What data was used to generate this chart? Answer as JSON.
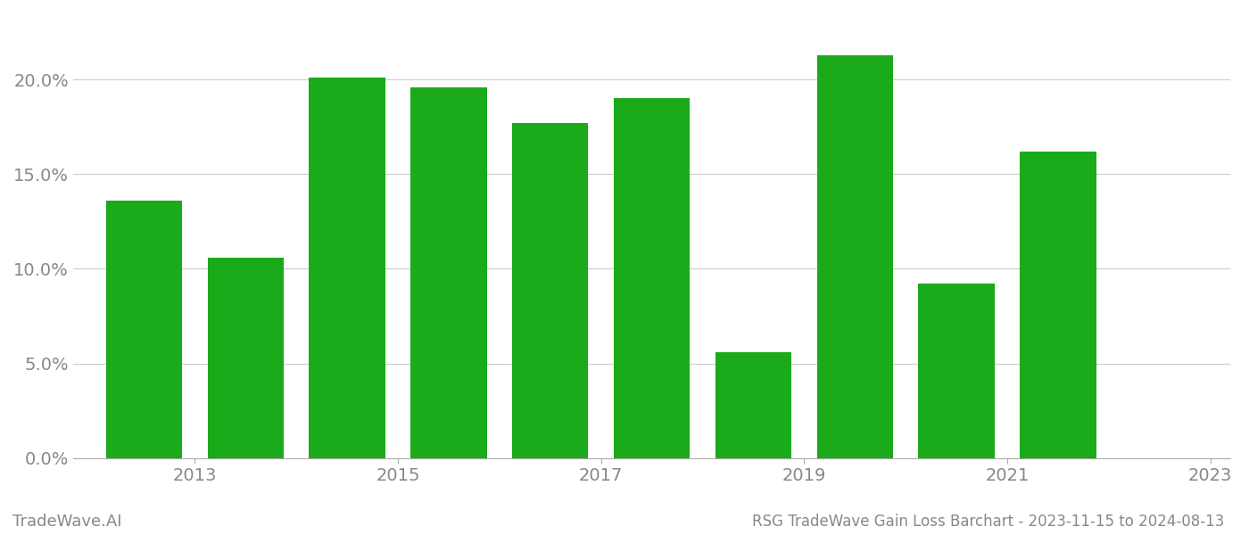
{
  "years": [
    2013,
    2014,
    2015,
    2016,
    2017,
    2018,
    2019,
    2020,
    2021,
    2022
  ],
  "values": [
    0.136,
    0.106,
    0.201,
    0.196,
    0.177,
    0.19,
    0.056,
    0.213,
    0.092,
    0.162
  ],
  "bar_color": "#1aaa1a",
  "background_color": "#ffffff",
  "grid_color": "#cccccc",
  "title_text": "RSG TradeWave Gain Loss Barchart - 2023-11-15 to 2024-08-13",
  "watermark_text": "TradeWave.AI",
  "ylim": [
    0,
    0.235
  ],
  "yticks": [
    0.0,
    0.05,
    0.1,
    0.15,
    0.2
  ],
  "ytick_labels": [
    "0.0%",
    "5.0%",
    "10.0%",
    "15.0%",
    "20.0%"
  ],
  "tick_fontsize": 14,
  "title_fontsize": 12,
  "watermark_fontsize": 13,
  "bar_width": 0.75,
  "xtick_positions": [
    2013.5,
    2015.5,
    2017.5,
    2019.5,
    2021.5,
    2023.5
  ],
  "xtick_labels": [
    "2013",
    "2015",
    "2017",
    "2019",
    "2021",
    "2023"
  ]
}
